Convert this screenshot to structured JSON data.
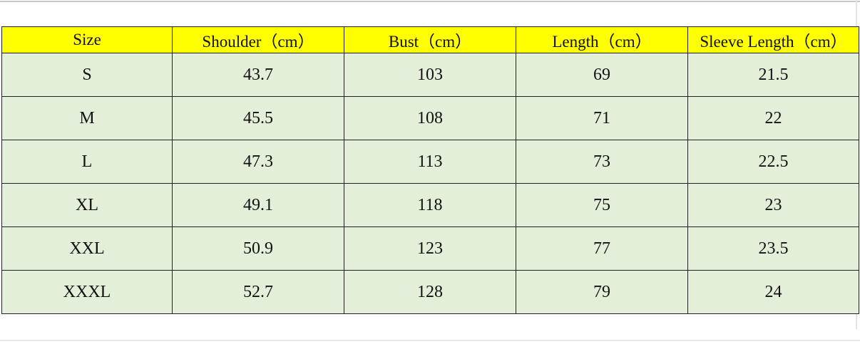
{
  "table": {
    "header": [
      "Size",
      "Shoulder（cm）",
      "Bust（cm）",
      "Length（cm）",
      "Sleeve Length（cm）"
    ],
    "rows": [
      [
        "S",
        43.7,
        103,
        69,
        21.5
      ],
      [
        "M",
        45.5,
        108,
        71,
        22
      ],
      [
        "L",
        47.3,
        113,
        73,
        22.5
      ],
      [
        "XL",
        49.1,
        118,
        75,
        23
      ],
      [
        "XXL",
        50.9,
        123,
        77,
        23.5
      ],
      [
        "XXXL",
        52.7,
        128,
        79,
        24
      ]
    ]
  }
}
